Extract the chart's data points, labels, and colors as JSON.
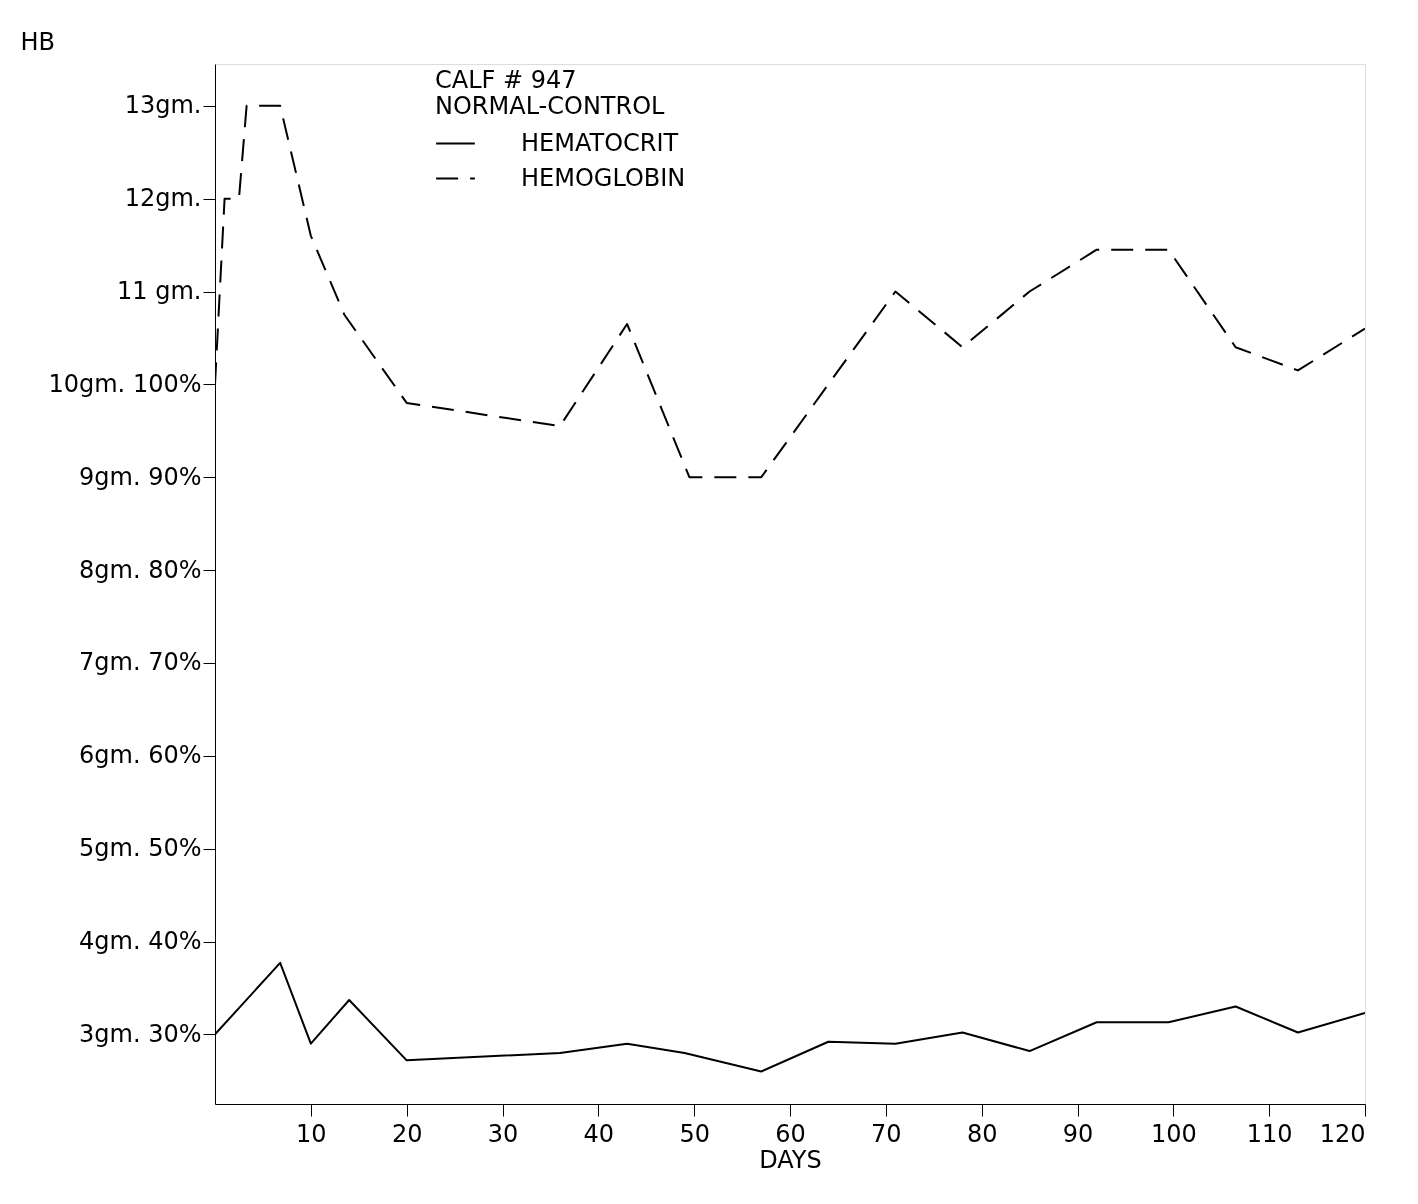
{
  "chart_data": {
    "type": "line",
    "title": "CALF # 947",
    "subtitle": "NORMAL-CONTROL",
    "xlabel": "DAYS",
    "ylabel": "HB",
    "xlim": [
      0,
      120
    ],
    "xticks": [
      10,
      20,
      30,
      40,
      50,
      60,
      70,
      80,
      90,
      100,
      110,
      120
    ],
    "ylim": [
      2.25,
      13.45
    ],
    "yticks": [
      {
        "value": 3,
        "label": "3gm. 30%"
      },
      {
        "value": 4,
        "label": "4gm. 40%"
      },
      {
        "value": 5,
        "label": "5gm. 50%"
      },
      {
        "value": 6,
        "label": "6gm. 60%"
      },
      {
        "value": 7,
        "label": "7gm. 70%"
      },
      {
        "value": 8,
        "label": "8gm. 80%"
      },
      {
        "value": 9,
        "label": "9gm. 90%"
      },
      {
        "value": 10,
        "label": "10gm. 100%"
      },
      {
        "value": 11,
        "label": "11 gm."
      },
      {
        "value": 12,
        "label": "12gm."
      },
      {
        "value": 13,
        "label": "13gm."
      }
    ],
    "grid": false,
    "legend": "top",
    "marker": "none",
    "series": [
      {
        "name": "HEMATOCRIT",
        "color": "#000000",
        "line_style": "solid",
        "x": [
          0,
          6.8,
          10,
          14,
          20,
          36,
          43,
          49,
          57,
          64,
          71,
          78,
          85,
          92,
          99.5,
          106.5,
          113,
          120
        ],
        "values": [
          3.0,
          3.77,
          2.9,
          3.37,
          2.72,
          2.8,
          2.9,
          2.8,
          2.6,
          2.92,
          2.9,
          3.02,
          2.82,
          3.13,
          3.13,
          3.3,
          3.02,
          3.23
        ]
      },
      {
        "name": "HEMOGLOBIN",
        "color": "#000000",
        "line_style": "dashed",
        "x": [
          0,
          1,
          2.5,
          3.3,
          6.8,
          10,
          13.5,
          20,
          36,
          43,
          49.5,
          57,
          71,
          78,
          85,
          92,
          99.5,
          106.5,
          113,
          120
        ],
        "values": [
          10.0,
          12.0,
          12.0,
          13.0,
          13.0,
          11.6,
          10.75,
          9.8,
          9.55,
          10.65,
          9.0,
          9.0,
          11.0,
          10.4,
          11.0,
          11.45,
          11.45,
          10.4,
          10.15,
          10.6
        ]
      }
    ]
  }
}
